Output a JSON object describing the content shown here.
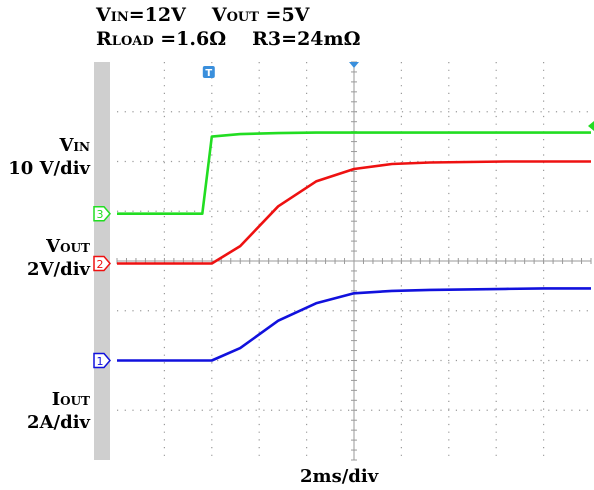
{
  "header": {
    "line1": [
      {
        "main": "V",
        "sub": "IN",
        "value": "=12V"
      },
      {
        "main": "V",
        "sub": "OUT",
        "value": " =5V"
      }
    ],
    "line2": [
      {
        "main": "R",
        "sub": "LOAD",
        "value": " =1.6Ω"
      },
      {
        "main": "",
        "sub": "",
        "value": "R3=24mΩ"
      }
    ]
  },
  "channels": [
    {
      "label": "V",
      "label_sub": "IN",
      "scale": "10 V/div",
      "marker": "3"
    },
    {
      "label": "V",
      "label_sub": "OUT",
      "scale": "2V/div",
      "marker": "2"
    },
    {
      "label": "I",
      "label_sub": "OUT",
      "scale": "2A/div",
      "marker": "1"
    }
  ],
  "time_scale": "2ms/div",
  "trigger_marker": "T",
  "colors": {
    "ch3": "#22dd22",
    "ch2": "#ee1111",
    "ch1": "#1111dd",
    "grid": "#9a9a9a"
  },
  "chart_data": {
    "type": "line",
    "grid_divisions": {
      "x": 10,
      "y": 8
    },
    "x": [
      0,
      1.8,
      2.0,
      2.6,
      3.4,
      4.2,
      5.0,
      5.8,
      6.6,
      7.4,
      8.2,
      9.0,
      10.0
    ],
    "series": [
      {
        "name": "VIN",
        "values": [
          0.95,
          0.95,
          2.5,
          2.55,
          2.57,
          2.58,
          2.58,
          2.58,
          2.58,
          2.58,
          2.58,
          2.58,
          2.58
        ]
      },
      {
        "name": "VOUT",
        "values": [
          -0.05,
          -0.05,
          -0.05,
          0.3,
          1.1,
          1.6,
          1.85,
          1.95,
          1.98,
          1.99,
          2.0,
          2.0,
          2.0
        ]
      },
      {
        "name": "IOUT",
        "values": [
          -2.0,
          -2.0,
          -2.0,
          -1.75,
          -1.2,
          -0.85,
          -0.65,
          -0.6,
          -0.58,
          -0.57,
          -0.56,
          -0.55,
          -0.55
        ]
      }
    ]
  }
}
